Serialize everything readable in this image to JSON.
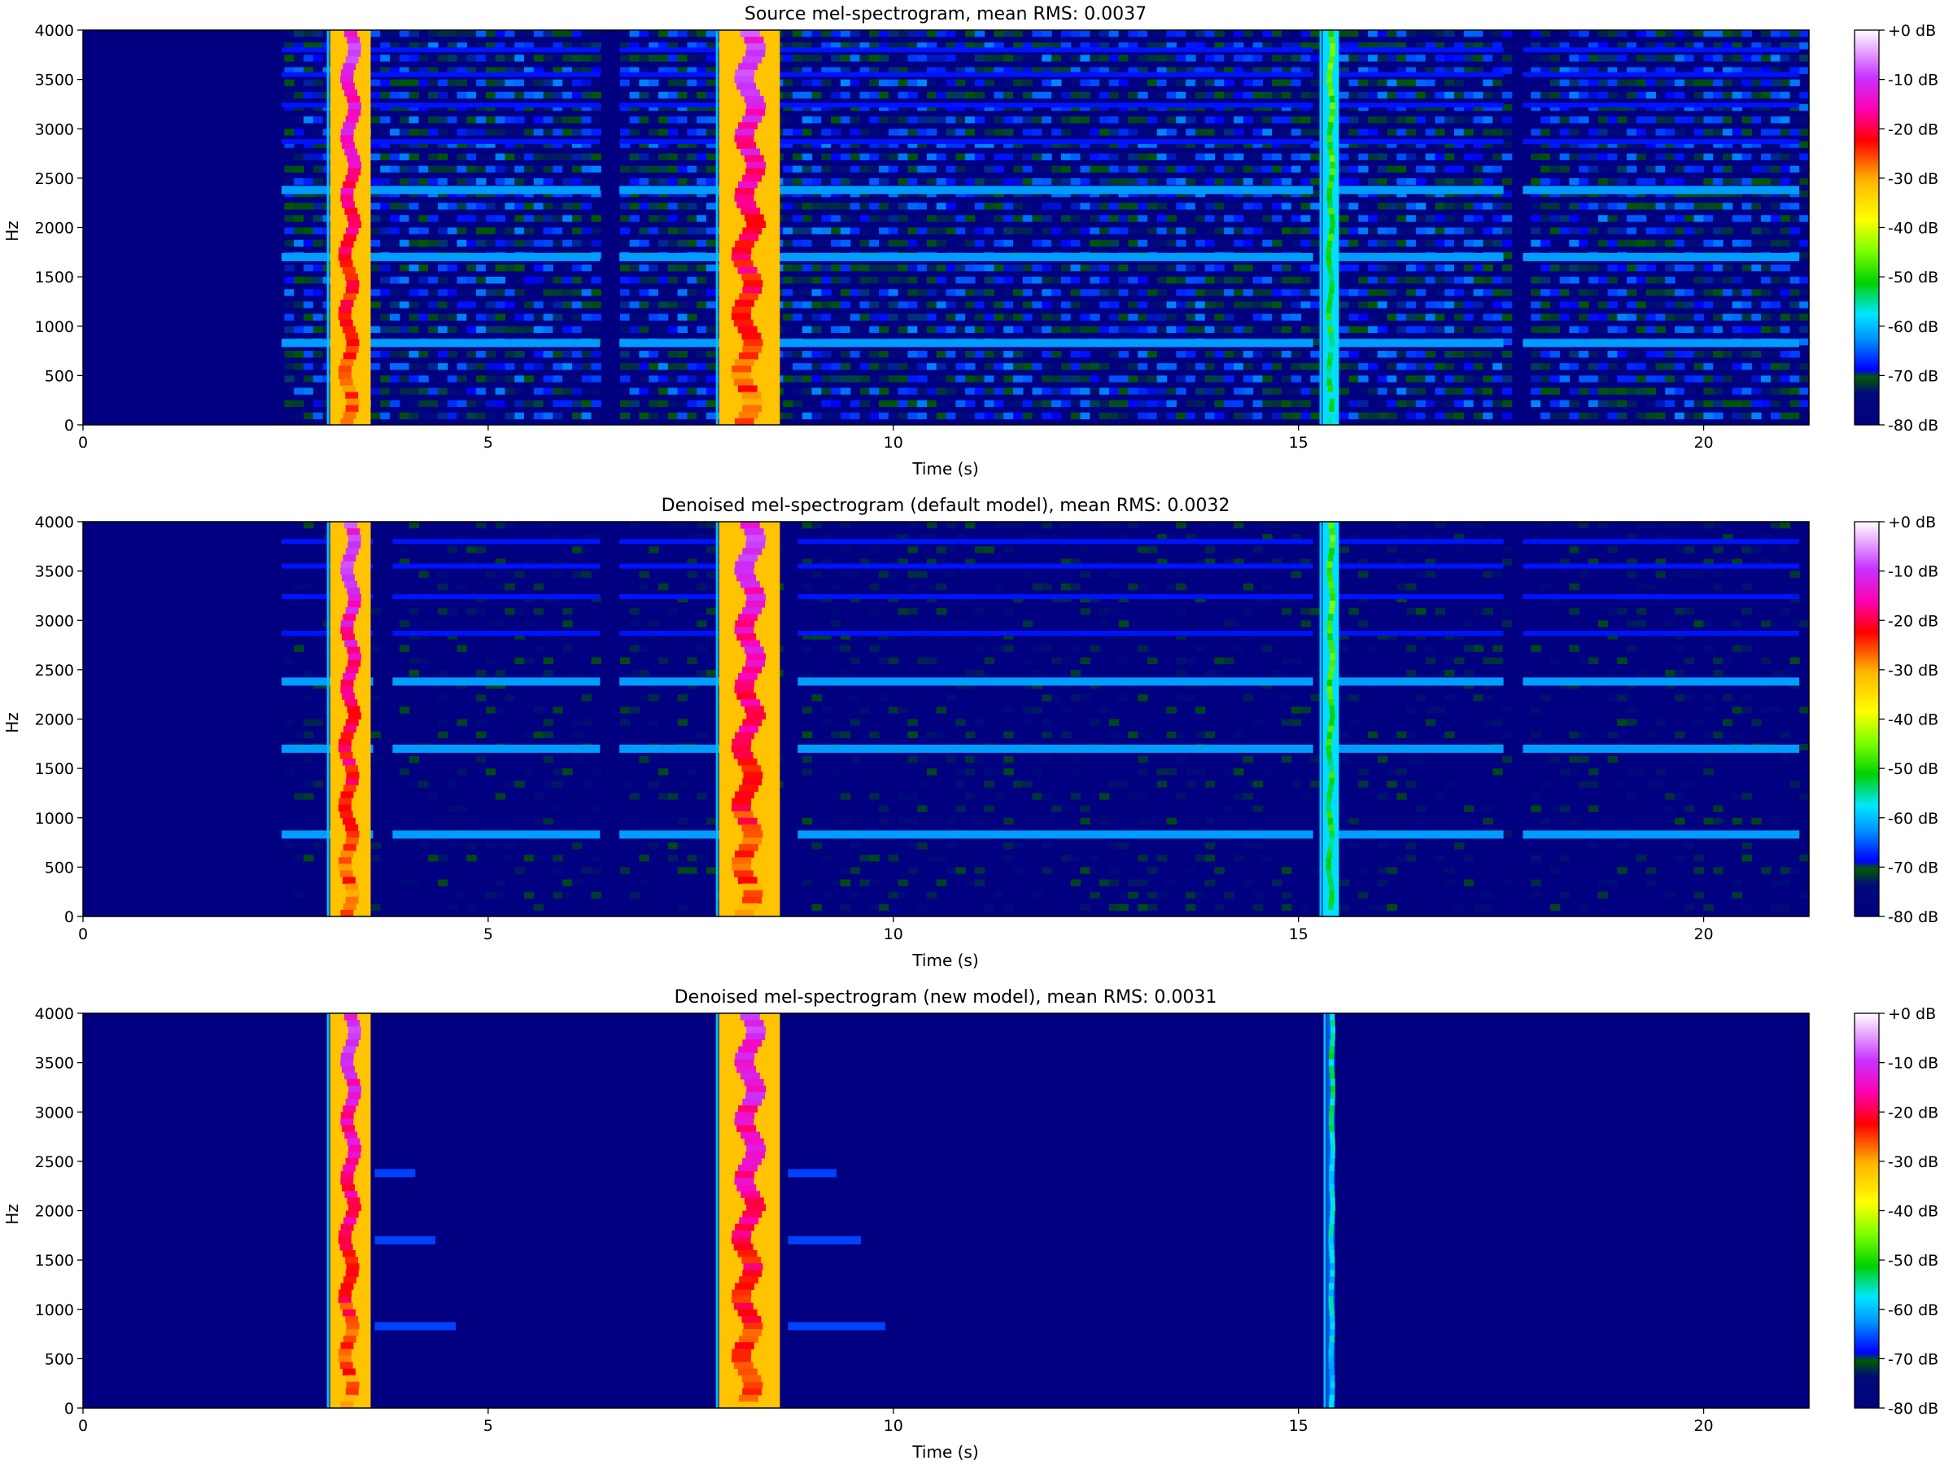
{
  "chart_data": [
    {
      "type": "heatmap",
      "title": "Source mel-spectrogram, mean RMS: 0.0037",
      "xlabel": "Time (s)",
      "ylabel": "Hz",
      "xlim": [
        0,
        21.3
      ],
      "ylim": [
        0,
        4000
      ],
      "xticks": [
        "0",
        "5",
        "10",
        "15",
        "20"
      ],
      "yticks": [
        "0",
        "500",
        "1000",
        "1500",
        "2000",
        "2500",
        "3000",
        "3500",
        "4000"
      ],
      "colorbar": {
        "ticks": [
          "+0 dB",
          "-10 dB",
          "-20 dB",
          "-30 dB",
          "-40 dB",
          "-50 dB",
          "-60 dB",
          "-70 dB",
          "-80 dB"
        ],
        "range_db": [
          -80,
          0
        ]
      },
      "noise_start_s": 2.45,
      "noise_floor_db": -68,
      "tone_bands_hz": [
        830,
        1700,
        2380,
        2870,
        3240,
        3550,
        3800
      ],
      "dropouts_s": [
        6.5,
        15.3,
        17.65
      ],
      "speech_events": [
        {
          "start_s": 3.05,
          "end_s": 3.55,
          "peak_db": -12
        },
        {
          "start_s": 7.85,
          "end_s": 8.6,
          "peak_db": -12
        },
        {
          "start_s": 15.3,
          "end_s": 15.5,
          "peak_db": -38
        }
      ]
    },
    {
      "type": "heatmap",
      "title": "Denoised mel-spectrogram (default model), mean RMS: 0.0032",
      "xlabel": "Time (s)",
      "ylabel": "Hz",
      "xlim": [
        0,
        21.3
      ],
      "ylim": [
        0,
        4000
      ],
      "xticks": [
        "0",
        "5",
        "10",
        "15",
        "20"
      ],
      "yticks": [
        "0",
        "500",
        "1000",
        "1500",
        "2000",
        "2500",
        "3000",
        "3500",
        "4000"
      ],
      "colorbar": {
        "ticks": [
          "+0 dB",
          "-10 dB",
          "-20 dB",
          "-30 dB",
          "-40 dB",
          "-50 dB",
          "-60 dB",
          "-70 dB",
          "-80 dB"
        ],
        "range_db": [
          -80,
          0
        ]
      },
      "noise_start_s": 2.45,
      "noise_floor_db": -76,
      "tone_bands_hz": [
        830,
        1700,
        2380,
        2870,
        3240,
        3550,
        3800
      ],
      "dropouts_s": [
        3.7,
        6.5,
        8.7,
        15.3,
        17.65
      ],
      "speech_events": [
        {
          "start_s": 3.05,
          "end_s": 3.55,
          "peak_db": -12
        },
        {
          "start_s": 7.85,
          "end_s": 8.6,
          "peak_db": -12
        },
        {
          "start_s": 15.3,
          "end_s": 15.5,
          "peak_db": -38
        }
      ]
    },
    {
      "type": "heatmap",
      "title": "Denoised mel-spectrogram (new model), mean RMS: 0.0031",
      "xlabel": "Time (s)",
      "ylabel": "Hz",
      "xlim": [
        0,
        21.3
      ],
      "ylim": [
        0,
        4000
      ],
      "xticks": [
        "0",
        "5",
        "10",
        "15",
        "20"
      ],
      "yticks": [
        "0",
        "500",
        "1000",
        "1500",
        "2000",
        "2500",
        "3000",
        "3500",
        "4000"
      ],
      "colorbar": {
        "ticks": [
          "+0 dB",
          "-10 dB",
          "-20 dB",
          "-30 dB",
          "-40 dB",
          "-50 dB",
          "-60 dB",
          "-70 dB",
          "-80 dB"
        ],
        "range_db": [
          -80,
          0
        ]
      },
      "noise_start_s": null,
      "noise_floor_db": -80,
      "tone_bands_hz": [
        830,
        1700,
        2380
      ],
      "dropouts_s": [],
      "speech_events": [
        {
          "start_s": 3.05,
          "end_s": 3.55,
          "peak_db": -12
        },
        {
          "start_s": 7.85,
          "end_s": 8.6,
          "peak_db": -12
        },
        {
          "start_s": 15.35,
          "end_s": 15.45,
          "peak_db": -45
        }
      ]
    }
  ]
}
